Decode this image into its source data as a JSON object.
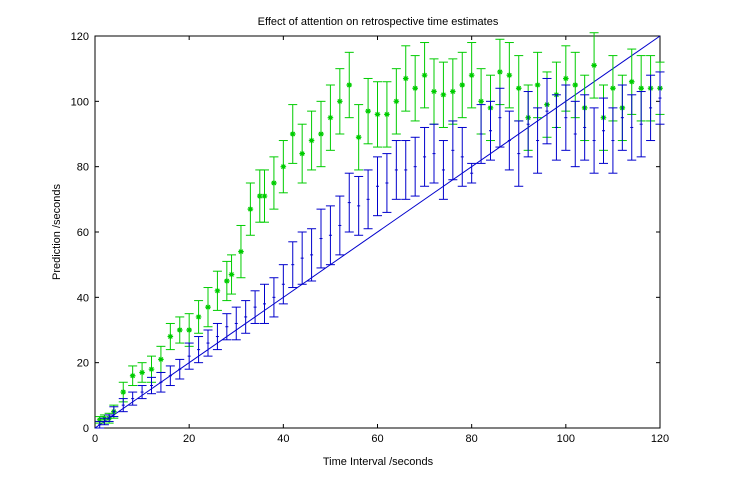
{
  "chart_data": {
    "type": "scatter",
    "title": "Effect of attention on retrospective time estimates",
    "xlabel": "Time Interval /seconds",
    "ylabel": "Prediction /seconds",
    "xlim": [
      0,
      120
    ],
    "ylim": [
      0,
      120
    ],
    "xticks": [
      0,
      20,
      40,
      60,
      80,
      100,
      120
    ],
    "yticks": [
      0,
      20,
      40,
      60,
      80,
      100,
      120
    ],
    "grid": false,
    "legend": "none",
    "reference_line": {
      "x": [
        0,
        120
      ],
      "y": [
        0,
        120
      ],
      "color": "#0000cc"
    },
    "series": [
      {
        "color": "#00cc00",
        "marker": "asterisk",
        "x": [
          1,
          2,
          3,
          4,
          6,
          8,
          10,
          12,
          14,
          16,
          18,
          20,
          22,
          24,
          26,
          28,
          29,
          31,
          33,
          35,
          36,
          38,
          40,
          42,
          44,
          46,
          48,
          50,
          52,
          54,
          56,
          58,
          60,
          62,
          64,
          66,
          68,
          70,
          72,
          74,
          76,
          78,
          80,
          82,
          84,
          86,
          88,
          90,
          92,
          94,
          96,
          98,
          100,
          102,
          104,
          106,
          108,
          110,
          112,
          114,
          116,
          118,
          120
        ],
        "y": [
          2.5,
          3,
          3,
          5,
          11,
          16,
          17,
          18,
          21,
          28,
          30,
          30,
          34,
          37,
          42,
          45,
          47,
          54,
          67,
          71,
          71,
          75,
          80,
          90,
          84,
          88,
          90,
          95,
          100,
          105,
          89,
          97,
          96,
          96,
          100,
          107,
          104,
          108,
          103,
          102,
          103,
          105,
          108,
          100,
          98,
          109,
          108,
          104,
          95,
          105,
          99,
          102,
          107,
          105,
          98,
          111,
          95,
          104,
          98,
          106,
          104,
          104,
          104
        ],
        "err": [
          1,
          1,
          1.5,
          2,
          3,
          3,
          3,
          4,
          4,
          4,
          4,
          5,
          5,
          6,
          6,
          6,
          6,
          8,
          8,
          8,
          8,
          8,
          8,
          9,
          9,
          9,
          10,
          10,
          10,
          10,
          10,
          10,
          10,
          10,
          10,
          10,
          10,
          10,
          10,
          10,
          10,
          10,
          10,
          10,
          10,
          10,
          10,
          10,
          10,
          10,
          10,
          10,
          10,
          10,
          10,
          10,
          10,
          10,
          10,
          10,
          10,
          10,
          8
        ]
      },
      {
        "color": "#0000cc",
        "marker": "none",
        "x": [
          1,
          2,
          3,
          4,
          6,
          8,
          10,
          12,
          14,
          16,
          18,
          20,
          22,
          24,
          26,
          28,
          30,
          32,
          34,
          36,
          38,
          40,
          42,
          44,
          46,
          48,
          50,
          52,
          54,
          56,
          58,
          60,
          62,
          64,
          66,
          68,
          70,
          72,
          74,
          76,
          78,
          80,
          82,
          84,
          86,
          88,
          90,
          92,
          94,
          96,
          98,
          100,
          102,
          104,
          106,
          108,
          110,
          112,
          114,
          116,
          118,
          120
        ],
        "y": [
          1,
          2,
          3,
          5,
          7,
          9,
          11,
          13,
          14,
          16,
          18,
          22,
          24,
          26,
          28,
          31,
          32,
          34,
          37,
          38,
          40,
          44,
          50,
          52,
          53,
          58,
          59,
          62,
          69,
          68,
          70,
          74,
          75,
          79,
          79,
          80,
          83,
          84,
          79,
          85,
          83,
          78,
          90,
          91,
          95,
          88,
          84,
          93,
          88,
          97,
          92,
          95,
          90,
          92,
          88,
          91,
          88,
          95,
          92,
          93,
          98,
          101
        ],
        "err": [
          1,
          1,
          1,
          1.5,
          2,
          2,
          2,
          2.5,
          3,
          3,
          3,
          4,
          4,
          4,
          4,
          4,
          5,
          5,
          5,
          6,
          6,
          6,
          7,
          8,
          8,
          9,
          9,
          9,
          9,
          9,
          9,
          9,
          9,
          9,
          9,
          9,
          9,
          9,
          9,
          9,
          9,
          3,
          9,
          9,
          9,
          9,
          10,
          10,
          10,
          10,
          10,
          10,
          10,
          10,
          10,
          10,
          10,
          10,
          10,
          10,
          10,
          8
        ]
      }
    ]
  }
}
